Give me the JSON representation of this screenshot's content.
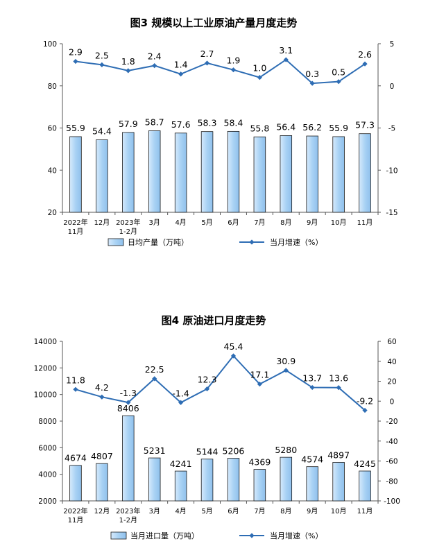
{
  "chart_data": [
    {
      "type": "bar",
      "title": "图3  规模以上工业原油产量月度走势",
      "categories": [
        [
          "2022年",
          "11月"
        ],
        [
          "12月"
        ],
        [
          "2023年",
          "1-2月"
        ],
        [
          "3月"
        ],
        [
          "4月"
        ],
        [
          "5月"
        ],
        [
          "6月"
        ],
        [
          "7月"
        ],
        [
          "8月"
        ],
        [
          "9月"
        ],
        [
          "10月"
        ],
        [
          "11月"
        ]
      ],
      "left_axis": {
        "min": 20,
        "max": 100,
        "ticks": [
          "20",
          "40",
          "60",
          "80",
          "100"
        ]
      },
      "right_axis": {
        "min": -15,
        "max": 5,
        "ticks": [
          "-15",
          "-10",
          "-5",
          "0",
          "5"
        ]
      },
      "series": [
        {
          "name": "日均产量（万吨）",
          "kind": "bar",
          "axis": "left",
          "values": [
            55.9,
            54.4,
            57.9,
            58.7,
            57.6,
            58.3,
            58.4,
            55.8,
            56.4,
            56.2,
            55.9,
            57.3
          ],
          "labels": [
            "55.9",
            "54.4",
            "57.9",
            "58.7",
            "57.6",
            "58.3",
            "58.4",
            "55.8",
            "56.4",
            "56.2",
            "55.9",
            "57.3"
          ]
        },
        {
          "name": "当月增速（%）",
          "kind": "line",
          "axis": "right",
          "values": [
            2.9,
            2.5,
            1.8,
            2.4,
            1.4,
            2.7,
            1.9,
            1.0,
            3.1,
            0.3,
            0.5,
            2.6
          ],
          "labels": [
            "2.9",
            "2.5",
            "1.8",
            "2.4",
            "1.4",
            "2.7",
            "1.9",
            "1.0",
            "3.1",
            "0.3",
            "0.5",
            "2.6"
          ]
        }
      ]
    },
    {
      "type": "bar",
      "title": "图4  原油进口月度走势",
      "categories": [
        [
          "2022年",
          "11月"
        ],
        [
          "12月"
        ],
        [
          "2023年",
          "1-2月"
        ],
        [
          "3月"
        ],
        [
          "4月"
        ],
        [
          "5月"
        ],
        [
          "6月"
        ],
        [
          "7月"
        ],
        [
          "8月"
        ],
        [
          "9月"
        ],
        [
          "10月"
        ],
        [
          "11月"
        ]
      ],
      "left_axis": {
        "min": 2000,
        "max": 14000,
        "ticks": [
          "2000",
          "4000",
          "6000",
          "8000",
          "10000",
          "12000",
          "14000"
        ]
      },
      "right_axis": {
        "min": -100,
        "max": 60,
        "ticks": [
          "-100",
          "-80",
          "-60",
          "-40",
          "-20",
          "0",
          "20",
          "40",
          "60"
        ]
      },
      "series": [
        {
          "name": "当月进口量（万吨）",
          "kind": "bar",
          "axis": "left",
          "values": [
            4674,
            4807,
            8406,
            5231,
            4241,
            5144,
            5206,
            4369,
            5280,
            4574,
            4897,
            4245
          ],
          "labels": [
            "4674",
            "4807",
            "8406",
            "5231",
            "4241",
            "5144",
            "5206",
            "4369",
            "5280",
            "4574",
            "4897",
            "4245"
          ]
        },
        {
          "name": "当月增速（%）",
          "kind": "line",
          "axis": "right",
          "values": [
            11.8,
            4.2,
            -1.3,
            22.5,
            -1.4,
            12.3,
            45.4,
            17.1,
            30.9,
            13.7,
            13.6,
            -9.2
          ],
          "labels": [
            "11.8",
            "4.2",
            "-1.3",
            "22.5",
            "-1.4",
            "12.3",
            "45.4",
            "17.1",
            "30.9",
            "13.7",
            "13.6",
            "-9.2"
          ]
        }
      ]
    }
  ],
  "colors": {
    "bar_fill_top": "#ffffff",
    "bar_fill_bottom": "#9cc8ee",
    "bar_stroke": "#1a1a1a",
    "line": "#2e6db4"
  }
}
